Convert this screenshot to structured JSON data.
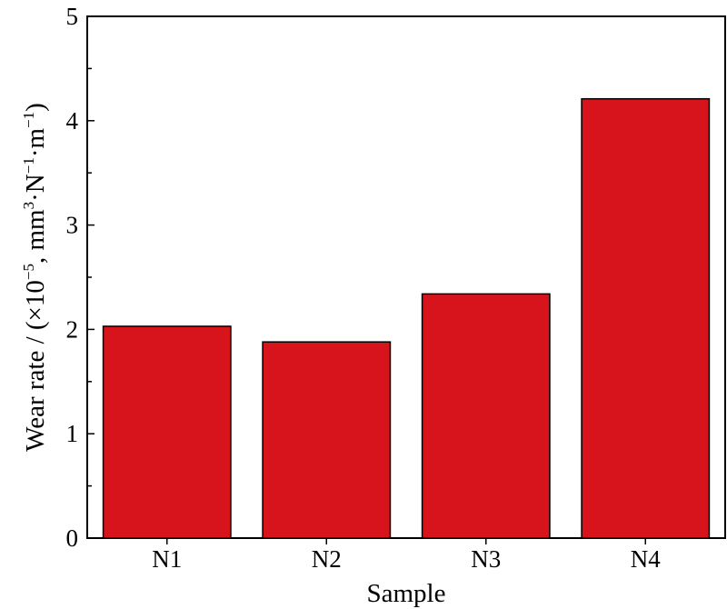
{
  "chart_data": {
    "type": "bar",
    "categories": [
      "N1",
      "N2",
      "N3",
      "N4"
    ],
    "values": [
      2.03,
      1.88,
      2.34,
      4.21
    ],
    "title": "",
    "xlabel": "Sample",
    "ylabel": {
      "prefix": "Wear rate / (×10",
      "exp1": "−5",
      "mid1": ", mm",
      "exp2": "3",
      "mid2": "·N",
      "exp3": "−1",
      "mid3": "·m",
      "exp4": "−1",
      "suffix": ")"
    },
    "ylim": [
      0,
      5
    ],
    "yticks": [
      "0",
      "1",
      "2",
      "3",
      "4",
      "5"
    ],
    "bar_color": "#d7141c",
    "grid": false,
    "legend": "none"
  }
}
